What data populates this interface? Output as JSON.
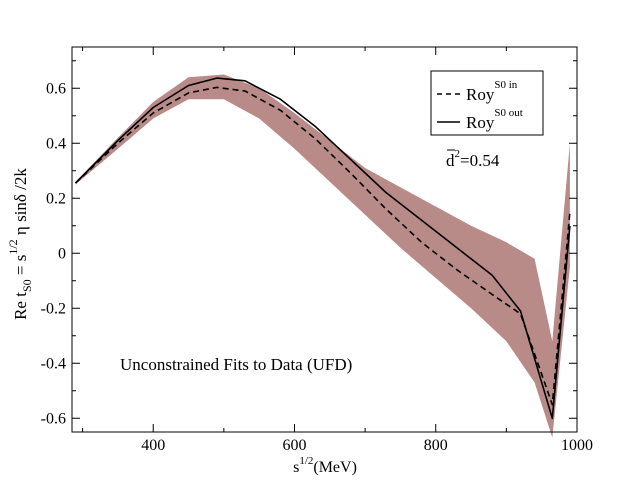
{
  "chart_data": {
    "type": "line",
    "title": "",
    "xlabel": {
      "base": "s",
      "sup": "1/2",
      "unit": "(MeV)"
    },
    "ylabel": {
      "p1": "Re t",
      "p1_sub": "S0",
      "p2": " = s",
      "p2_sup": "1/2",
      "p3": " η sinδ /2k"
    },
    "xlim": [
      285,
      1000
    ],
    "ylim": [
      -0.65,
      0.75
    ],
    "x_ticks": [
      400,
      600,
      800,
      1000
    ],
    "x_tick_labels": [
      "400",
      "600",
      "800",
      "1000"
    ],
    "y_ticks": [
      0.6,
      0.4,
      0.2,
      0,
      -0.2,
      -0.4,
      -0.6
    ],
    "y_tick_labels": [
      "0.6",
      "0.4",
      "0.2",
      "0",
      "-0.2",
      "-0.4",
      "-0.6"
    ],
    "grid": false,
    "legend_position": "top-right",
    "band_color": "#b88a88",
    "band": {
      "x": [
        290,
        350,
        400,
        450,
        500,
        550,
        600,
        650,
        700,
        750,
        800,
        850,
        900,
        940,
        965,
        990
      ],
      "upper": [
        0.26,
        0.42,
        0.55,
        0.64,
        0.65,
        0.6,
        0.51,
        0.41,
        0.31,
        0.24,
        0.17,
        0.1,
        0.04,
        -0.02,
        -0.32,
        0.4
      ],
      "lower": [
        0.25,
        0.38,
        0.49,
        0.56,
        0.56,
        0.49,
        0.38,
        0.26,
        0.14,
        0.02,
        -0.09,
        -0.2,
        -0.32,
        -0.47,
        -0.67,
        -0.05
      ]
    },
    "series": [
      {
        "name": "Roy",
        "name_sup": "S0 in",
        "style": "dashed",
        "x": [
          290,
          350,
          400,
          450,
          490,
          530,
          580,
          630,
          680,
          730,
          780,
          830,
          880,
          920,
          965,
          990
        ],
        "y": [
          0.255,
          0.4,
          0.51,
          0.583,
          0.603,
          0.59,
          0.52,
          0.415,
          0.29,
          0.16,
          0.04,
          -0.06,
          -0.15,
          -0.22,
          -0.55,
          0.15
        ]
      },
      {
        "name": "Roy",
        "name_sup": "S0 out",
        "style": "solid",
        "x": [
          290,
          350,
          400,
          450,
          490,
          530,
          580,
          630,
          680,
          730,
          780,
          830,
          880,
          920,
          965,
          990
        ],
        "y": [
          0.255,
          0.41,
          0.53,
          0.61,
          0.637,
          0.627,
          0.56,
          0.46,
          0.34,
          0.22,
          0.12,
          0.02,
          -0.08,
          -0.21,
          -0.6,
          0.1
        ]
      }
    ],
    "annotations": {
      "d2": {
        "base": "d",
        "sup": "2",
        "value": "=0.54"
      },
      "caption": "Unconstrained Fits to Data (UFD)"
    }
  }
}
